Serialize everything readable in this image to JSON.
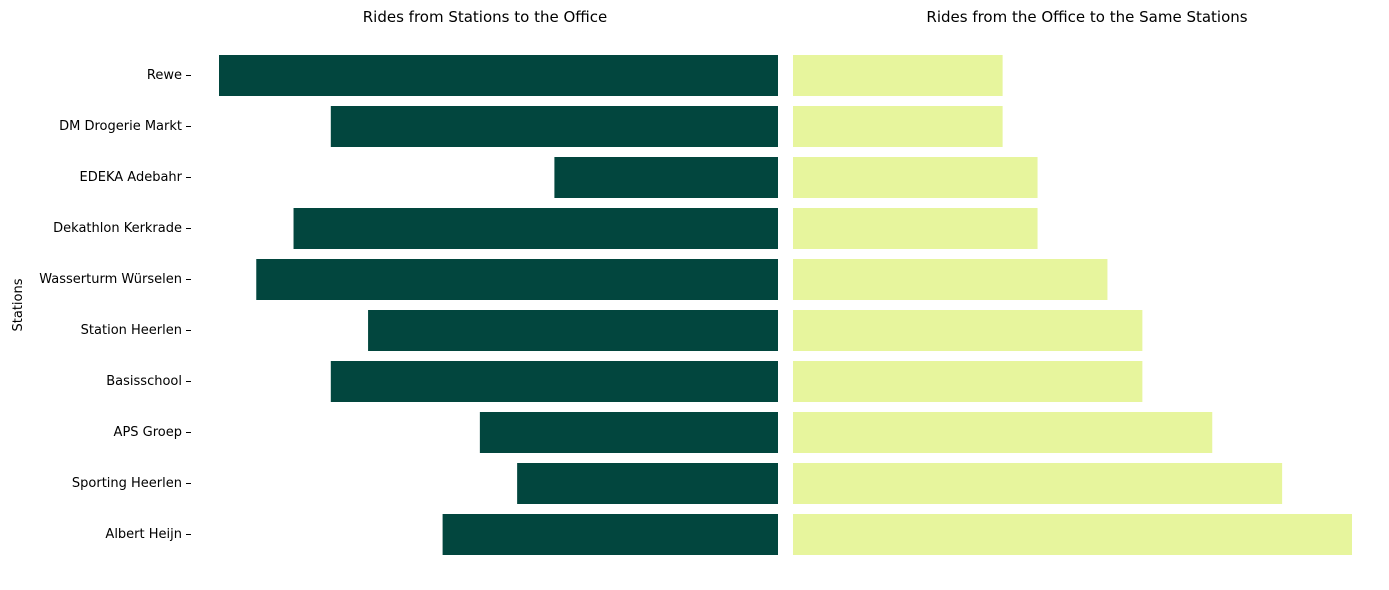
{
  "chart_data": [
    {
      "type": "bar",
      "orientation": "horizontal",
      "direction": "right-to-left",
      "title": "Rides from Stations to the Office",
      "ylabel": "Stations",
      "categories": [
        "Rewe",
        "DM Drogerie Markt",
        "EDEKA Adebahr",
        "Dekathlon Kerkrade",
        "Wasserturm Würselen",
        "Station Heerlen",
        "Basisschool",
        "APS Groep",
        "Sporting Heerlen",
        "Albert Heijn"
      ],
      "values": [
        15,
        12,
        6,
        13,
        14,
        11,
        12,
        8,
        7,
        9
      ],
      "xlim": [
        0,
        15
      ],
      "color": "#02463E",
      "grid": false,
      "x_axis_visible": false
    },
    {
      "type": "bar",
      "orientation": "horizontal",
      "direction": "left-to-right",
      "title": "Rides from the Office to the Same Stations",
      "categories": [
        "Rewe",
        "DM Drogerie Markt",
        "EDEKA Adebahr",
        "Dekathlon Kerkrade",
        "Wasserturm Würselen",
        "Station Heerlen",
        "Basisschool",
        "APS Groep",
        "Sporting Heerlen",
        "Albert Heijn"
      ],
      "values": [
        6,
        6,
        7,
        7,
        9,
        10,
        10,
        12,
        14,
        16
      ],
      "xlim": [
        0,
        16
      ],
      "color": "#E7F59D",
      "grid": false,
      "x_axis_visible": false
    }
  ]
}
